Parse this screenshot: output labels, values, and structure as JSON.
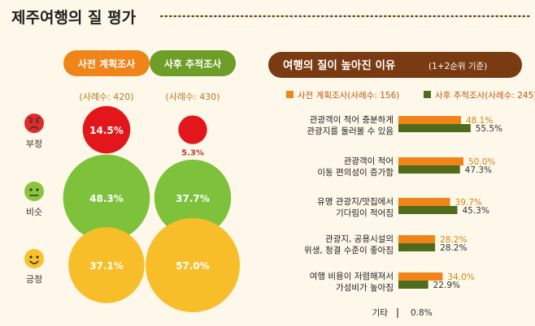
{
  "title": "제주여행의 질 평가",
  "left": {
    "pills": [
      {
        "label": "사전 계획조사",
        "color": "#f08418"
      },
      {
        "label": "사후 추적조사",
        "color": "#6e9e27"
      }
    ],
    "sample_sizes": [
      "(사례수: 420)",
      "(사례수: 430)"
    ],
    "rows": [
      {
        "label": "부정",
        "face": "sad",
        "face_color": "#e02b2b",
        "circle_color": "#e3171b",
        "values": [
          "14.5%",
          "5.3%"
        ]
      },
      {
        "label": "비슷",
        "face": "neutral",
        "face_color": "#8cc43c",
        "circle_color": "#7dc23a",
        "values": [
          "48.3%",
          "37.7%"
        ]
      },
      {
        "label": "긍정",
        "face": "happy",
        "face_color": "#f9c22b",
        "circle_color": "#f8be2a",
        "values": [
          "37.1%",
          "57.0%"
        ]
      }
    ]
  },
  "right": {
    "header": "여행의 질이 높아진 이유",
    "header_sub": "(1+2순위 기준)",
    "header_bg": "#7a3a12",
    "legend": [
      {
        "label": "사전 계획조사(사례수: 156)",
        "color": "#f08418"
      },
      {
        "label": "사후 추적조사(사례수: 245)",
        "color": "#4f6b1c"
      }
    ],
    "other": {
      "label": "기타",
      "value": "0.8%"
    }
  },
  "chart_data": [
    {
      "type": "bubble",
      "categories": [
        "부정",
        "비슷",
        "긍정"
      ],
      "series": [
        {
          "name": "사전 계획조사",
          "values": [
            14.5,
            48.3,
            37.1
          ]
        },
        {
          "name": "사후 추적조사",
          "values": [
            5.3,
            37.7,
            57.0
          ]
        }
      ]
    },
    {
      "type": "bar",
      "orientation": "horizontal",
      "title": "여행의 질이 높아진 이유 (1+2순위 기준)",
      "categories": [
        [
          "관광객이 적어 충분하게",
          "관광지를 둘러볼 수 있음"
        ],
        [
          "관광객이 적어",
          "이동 편의성이 증가함"
        ],
        [
          "유명 관광지/맛집에서",
          "기다림이 적어짐"
        ],
        [
          "관광지, 공용시설의",
          "위생, 청결 수준이 좋아짐"
        ],
        [
          "여행 비용이 저렴해져서",
          "가성비가 높아짐"
        ]
      ],
      "series": [
        {
          "name": "사전 계획조사(사례수: 156)",
          "values": [
            48.1,
            50.0,
            39.7,
            28.2,
            34.0
          ]
        },
        {
          "name": "사후 추적조사(사례수: 245)",
          "values": [
            55.5,
            47.3,
            45.3,
            28.2,
            22.9
          ]
        }
      ],
      "value_labels": [
        [
          "48.1%",
          "50.0%",
          "39.7%",
          "28.2%",
          "34.0%"
        ],
        [
          "55.5%",
          "47.3%",
          "45.3%",
          "28.2%",
          "22.9%"
        ]
      ]
    }
  ]
}
